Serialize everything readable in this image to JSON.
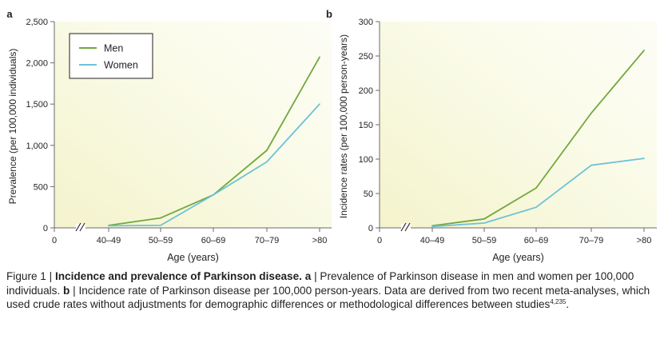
{
  "colors": {
    "men": "#72a83e",
    "women": "#6ec2d8",
    "axis": "#6b6b6b",
    "text": "#231f20",
    "bg_light": "#fbfcee",
    "bg_dark": "#f4f3cc"
  },
  "chart_data": [
    {
      "panel": "a",
      "type": "line",
      "title": "",
      "xlabel": "Age (years)",
      "ylabel": "Prevalence (per 100,000 individuals)",
      "x_origin_label": "0",
      "categories": [
        "40–49",
        "50–59",
        "60–69",
        "70–79",
        ">80"
      ],
      "ylim": [
        0,
        2500
      ],
      "yticks": [
        0,
        500,
        1000,
        1500,
        2000,
        2500
      ],
      "ytick_labels": [
        "0",
        "500",
        "1,000",
        "1,500",
        "2,000",
        "2,500"
      ],
      "grid": false,
      "legend_position": "top-left",
      "series": [
        {
          "name": "Men",
          "color": "#72a83e",
          "values": [
            30,
            120,
            400,
            940,
            2070
          ]
        },
        {
          "name": "Women",
          "color": "#6ec2d8",
          "values": [
            25,
            30,
            400,
            800,
            1500
          ]
        }
      ]
    },
    {
      "panel": "b",
      "type": "line",
      "title": "",
      "xlabel": "Age (years)",
      "ylabel": "Incidence rates (per 100,000 person-years)",
      "x_origin_label": "0",
      "categories": [
        "40–49",
        "50–59",
        "60–69",
        "70–79",
        ">80"
      ],
      "ylim": [
        0,
        300
      ],
      "yticks": [
        0,
        50,
        100,
        150,
        200,
        250,
        300
      ],
      "ytick_labels": [
        "0",
        "50",
        "100",
        "150",
        "200",
        "250",
        "300"
      ],
      "grid": false,
      "series": [
        {
          "name": "Men",
          "color": "#72a83e",
          "values": [
            3,
            13,
            58,
            167,
            258
          ]
        },
        {
          "name": "Women",
          "color": "#6ec2d8",
          "values": [
            2,
            7,
            30,
            91,
            101
          ]
        }
      ]
    }
  ],
  "caption": {
    "prefix": "Figure 1 | ",
    "title": "Incidence and prevalence of Parkinson disease.",
    "a_label": " a",
    "a_text": " | Prevalence of Parkinson disease in men and women per 100,000 individuals.",
    "b_label": " b",
    "b_text": " | Incidence rate of Parkinson disease per 100,000 person-years. Data are derived from two recent meta-analyses, which used crude rates without adjustments for demographic differences or methodological differences between studies",
    "refs": "4,235",
    "end": "."
  }
}
